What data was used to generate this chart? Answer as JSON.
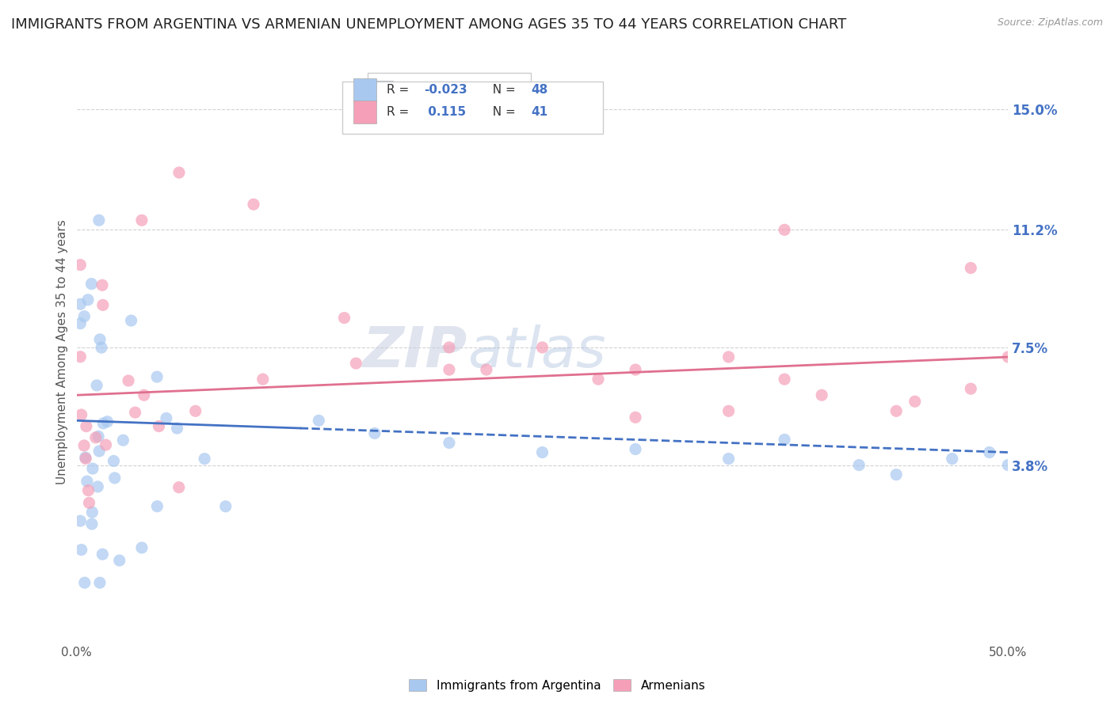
{
  "title": "IMMIGRANTS FROM ARGENTINA VS ARMENIAN UNEMPLOYMENT AMONG AGES 35 TO 44 YEARS CORRELATION CHART",
  "source": "Source: ZipAtlas.com",
  "ylabel": "Unemployment Among Ages 35 to 44 years",
  "xlim": [
    0.0,
    0.5
  ],
  "ylim": [
    -0.018,
    0.165
  ],
  "yticks": [
    0.038,
    0.075,
    0.112,
    0.15
  ],
  "ytick_labels": [
    "3.8%",
    "7.5%",
    "11.2%",
    "15.0%"
  ],
  "xtick_labels": [
    "0.0%",
    "50.0%"
  ],
  "xticks": [
    0.0,
    0.5
  ],
  "legend_bottom": [
    "Immigrants from Argentina",
    "Armenians"
  ],
  "blue_color": "#a8c8f0",
  "pink_color": "#f5a0b8",
  "blue_line_color": "#4472c4",
  "pink_line_color": "#e07090",
  "right_axis_color": "#4472c4",
  "background_color": "#ffffff",
  "grid_color": "#cccccc",
  "title_fontsize": 13,
  "axis_label_fontsize": 11,
  "blue_line_y0": 0.052,
  "blue_line_y1": 0.042,
  "pink_line_y0": 0.06,
  "pink_line_y1": 0.072
}
